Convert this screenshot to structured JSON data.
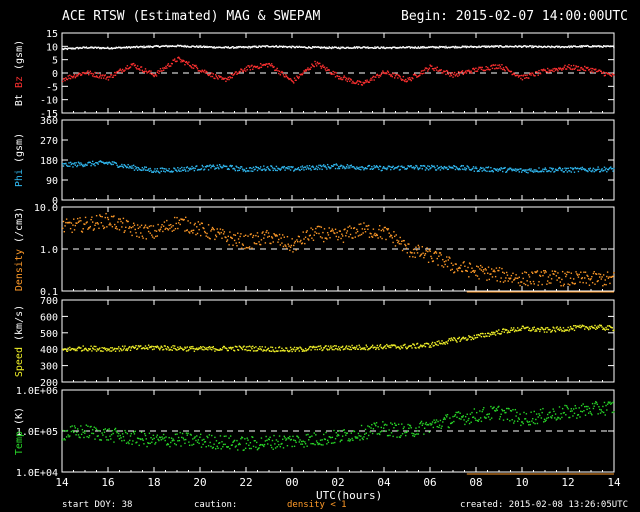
{
  "header": {
    "title": "ACE RTSW (Estimated) MAG & SWEPAM",
    "begin": "Begin: 2015-02-07 14:00:00UTC"
  },
  "footer": {
    "start_doy": "start DOY:  38",
    "caution_label": "caution:",
    "caution_text": "density < 1",
    "created": "created: 2015-02-08 13:26:05UTC",
    "xlabel": "UTC(hours)"
  },
  "colors": {
    "axis": "#ffffff",
    "bt": "#ffffff",
    "bz": "#ff3030",
    "phi": "#30b8f0",
    "density": "#ff9a28",
    "speed": "#f0f028",
    "temp": "#28d828",
    "caution": "#ff9a28"
  },
  "chart_data": [
    {
      "type": "scatter",
      "ylabel": "Bt Bz (gsm)",
      "ylabel_parts": [
        "Bt",
        "Bz",
        "(gsm)"
      ],
      "ylim": [
        -15,
        15
      ],
      "yticks": [
        "15",
        "10",
        "5",
        "0",
        "-5",
        "-10",
        "-15"
      ],
      "ytick_values": [
        15,
        10,
        5,
        0,
        -5,
        -10,
        -15
      ],
      "reference_line": 0,
      "x_range_hours": [
        14,
        38
      ],
      "series": [
        {
          "name": "Bt",
          "x": [
            14,
            15,
            16,
            17,
            18,
            19,
            20,
            21,
            22,
            23,
            24,
            25,
            26,
            27,
            28,
            29,
            30,
            31,
            32,
            33,
            34,
            35,
            36,
            37,
            38
          ],
          "values": [
            9.2,
            9.8,
            9.6,
            9.9,
            10.2,
            10.4,
            10.1,
            9.8,
            9.9,
            10.3,
            10.0,
            9.8,
            9.7,
            9.9,
            9.7,
            9.8,
            9.9,
            10.0,
            10.1,
            10.2,
            10.2,
            10.0,
            10.1,
            10.3,
            10.1
          ]
        },
        {
          "name": "Bz",
          "x": [
            14,
            15,
            16,
            17,
            18,
            19,
            20,
            21,
            22,
            23,
            24,
            25,
            26,
            27,
            28,
            29,
            30,
            31,
            32,
            33,
            34,
            35,
            36,
            37,
            38
          ],
          "values": [
            -2.0,
            0.5,
            -1.5,
            3.5,
            -0.5,
            5.5,
            1.5,
            -2.5,
            2.0,
            3.5,
            -3.0,
            4.0,
            -1.0,
            -4.0,
            0.5,
            -2.5,
            2.5,
            -0.5,
            1.5,
            3.0,
            -1.5,
            1.0,
            2.5,
            1.5,
            -1.0
          ]
        }
      ]
    },
    {
      "type": "scatter",
      "ylabel": "Phi (gsm)",
      "ylabel_parts": [
        "Phi",
        "(gsm)"
      ],
      "ylim": [
        0,
        360
      ],
      "yticks": [
        "360",
        "270",
        "180",
        "90",
        "0"
      ],
      "ytick_values": [
        360,
        270,
        180,
        90,
        0
      ],
      "x_range_hours": [
        14,
        38
      ],
      "series": [
        {
          "name": "Phi",
          "x": [
            14,
            15,
            16,
            17,
            18,
            19,
            20,
            21,
            22,
            23,
            24,
            25,
            26,
            27,
            28,
            29,
            30,
            31,
            32,
            33,
            34,
            35,
            36,
            37,
            38
          ],
          "values": [
            160,
            165,
            170,
            150,
            135,
            140,
            148,
            152,
            140,
            148,
            142,
            150,
            155,
            150,
            145,
            150,
            148,
            150,
            142,
            140,
            135,
            140,
            138,
            140,
            142
          ]
        }
      ]
    },
    {
      "type": "scatter",
      "ylabel": "Density (/cm3)",
      "ylabel_parts": [
        "Density",
        "(/cm3)"
      ],
      "log_scale": true,
      "ylim": [
        0.1,
        10
      ],
      "yticks": [
        "10.0",
        "1.0",
        "0.1"
      ],
      "ytick_values": [
        10,
        1,
        0.1
      ],
      "reference_line": 1,
      "x_range_hours": [
        14,
        38
      ],
      "series": [
        {
          "name": "Density",
          "x": [
            14,
            15,
            16,
            17,
            18,
            19,
            20,
            21,
            22,
            23,
            24,
            25,
            26,
            27,
            28,
            29,
            30,
            31,
            32,
            33,
            34,
            35,
            36,
            37,
            38
          ],
          "values": [
            3.5,
            4.0,
            5.0,
            3.0,
            2.5,
            4.5,
            3.0,
            2.0,
            1.5,
            2.0,
            1.2,
            2.5,
            2.0,
            3.0,
            2.5,
            1.0,
            0.7,
            0.4,
            0.3,
            0.25,
            0.2,
            0.22,
            0.2,
            0.2,
            0.2
          ]
        }
      ]
    },
    {
      "type": "scatter",
      "ylabel": "Speed (km/s)",
      "ylabel_parts": [
        "Speed",
        "(km/s)"
      ],
      "ylim": [
        200,
        700
      ],
      "yticks": [
        "700",
        "600",
        "500",
        "400",
        "300",
        "200"
      ],
      "ytick_values": [
        700,
        600,
        500,
        400,
        300,
        200
      ],
      "x_range_hours": [
        14,
        38
      ],
      "series": [
        {
          "name": "Speed",
          "x": [
            14,
            15,
            16,
            17,
            18,
            19,
            20,
            21,
            22,
            23,
            24,
            25,
            26,
            27,
            28,
            29,
            30,
            31,
            32,
            33,
            34,
            35,
            36,
            37,
            38
          ],
          "values": [
            400,
            410,
            405,
            410,
            415,
            410,
            405,
            408,
            410,
            405,
            400,
            410,
            412,
            415,
            418,
            420,
            430,
            460,
            480,
            510,
            530,
            520,
            530,
            540,
            530
          ]
        }
      ]
    },
    {
      "type": "scatter",
      "ylabel": "Temp (K)",
      "ylabel_parts": [
        "Temp",
        "(K)"
      ],
      "log_scale": true,
      "ylim": [
        10000,
        1000000
      ],
      "yticks": [
        "1.0E+06",
        "1.0E+05",
        "1.0E+04"
      ],
      "ytick_values": [
        1000000,
        100000,
        10000
      ],
      "reference_line": 100000,
      "x_range_hours": [
        14,
        38
      ],
      "series": [
        {
          "name": "Temp",
          "x": [
            14,
            15,
            16,
            17,
            18,
            19,
            20,
            21,
            22,
            23,
            24,
            25,
            26,
            27,
            28,
            29,
            30,
            31,
            32,
            33,
            34,
            35,
            36,
            37,
            38
          ],
          "values": [
            90000,
            100000,
            85000,
            70000,
            60000,
            65000,
            60000,
            55000,
            50000,
            55000,
            60000,
            65000,
            75000,
            95000,
            120000,
            100000,
            140000,
            200000,
            250000,
            300000,
            200000,
            250000,
            300000,
            350000,
            400000
          ]
        }
      ]
    }
  ],
  "x_axis": {
    "min": 14,
    "max": 38,
    "tick_values": [
      14,
      16,
      18,
      20,
      22,
      24,
      26,
      28,
      30,
      32,
      34,
      36,
      38
    ],
    "tick_labels": [
      "14",
      "16",
      "18",
      "20",
      "22",
      "00",
      "02",
      "04",
      "06",
      "08",
      "10",
      "12",
      "14"
    ]
  }
}
